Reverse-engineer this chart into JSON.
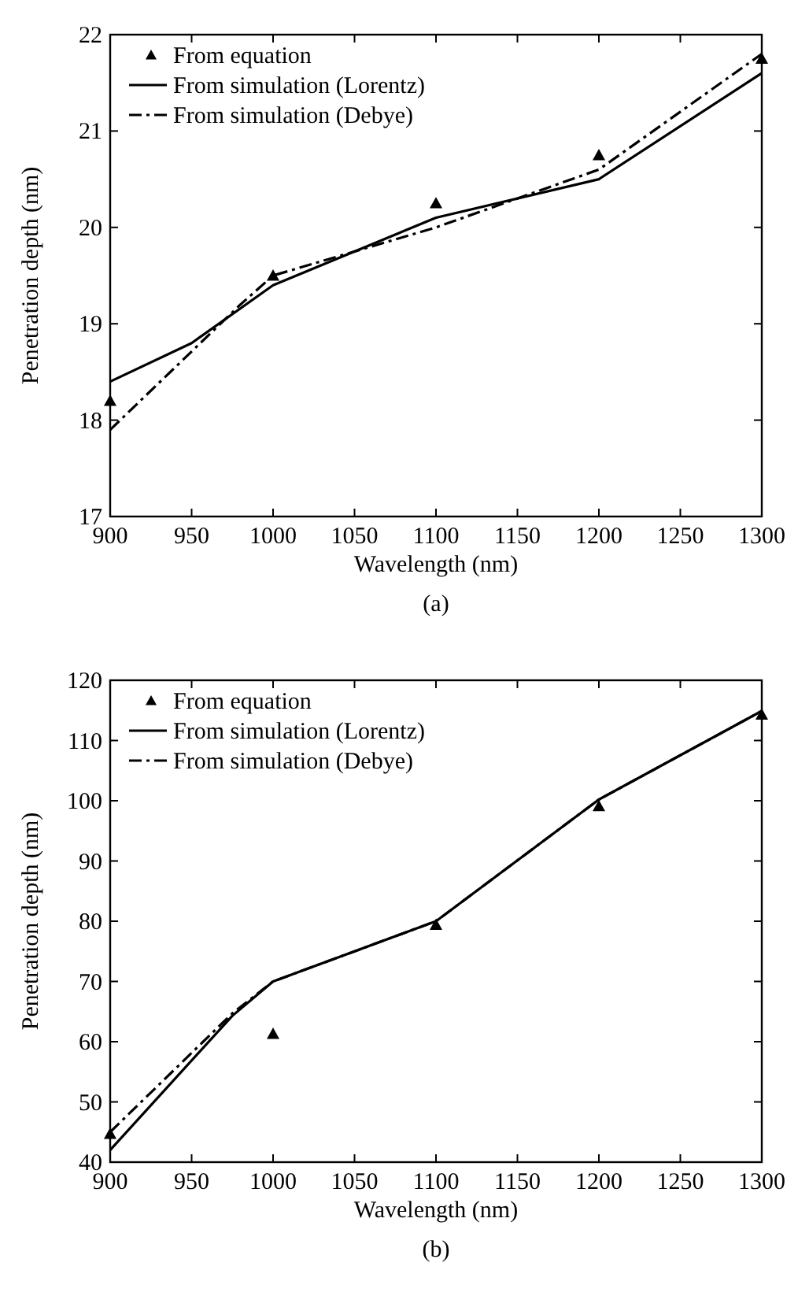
{
  "chart_data": [
    {
      "type": "line",
      "xlabel": "Wavelength (nm)",
      "ylabel": "Penetration depth (nm)",
      "annotations": [
        "(a)"
      ],
      "xlim": [
        900,
        1300
      ],
      "xticks": [
        900,
        950,
        1000,
        1050,
        1100,
        1150,
        1200,
        1250,
        1300
      ],
      "ylim": [
        17,
        22
      ],
      "yticks": [
        17,
        18,
        19,
        20,
        21,
        22
      ],
      "grid": false,
      "legend": "top left",
      "series": [
        {
          "name": "From equation",
          "type": "scatter",
          "marker": "triangle",
          "color": "#000000",
          "x": [
            900,
            1000,
            1100,
            1200,
            1300
          ],
          "values": [
            18.2,
            19.5,
            20.25,
            20.75,
            21.75
          ]
        },
        {
          "name": "From simulation (Lorentz)",
          "type": "line",
          "line_style": "solid",
          "color": "#000000",
          "x": [
            900,
            950,
            1000,
            1100,
            1200,
            1300
          ],
          "values": [
            18.4,
            18.8,
            19.4,
            20.1,
            20.5,
            21.6
          ]
        },
        {
          "name": "From simulation (Debye)",
          "type": "line",
          "line_style": "dashdot",
          "color": "#000000",
          "x": [
            900,
            980,
            1000,
            1100,
            1200,
            1300
          ],
          "values": [
            17.9,
            19.2,
            19.5,
            20.0,
            20.6,
            21.8
          ]
        }
      ]
    },
    {
      "type": "line",
      "xlabel": "Wavelength (nm)",
      "ylabel": "Penetration depth (nm)",
      "annotations": [
        "(b)"
      ],
      "xlim": [
        900,
        1300
      ],
      "xticks": [
        900,
        950,
        1000,
        1050,
        1100,
        1150,
        1200,
        1250,
        1300
      ],
      "ylim": [
        40,
        120
      ],
      "yticks": [
        40,
        50,
        60,
        70,
        80,
        90,
        100,
        110,
        120
      ],
      "grid": false,
      "legend": "top left",
      "series": [
        {
          "name": "From equation",
          "type": "scatter",
          "marker": "triangle",
          "color": "#000000",
          "x": [
            900,
            1000,
            1100,
            1200,
            1300
          ],
          "values": [
            44.7,
            61.3,
            79.4,
            99.1,
            114.3
          ]
        },
        {
          "name": "From simulation (Lorentz)",
          "type": "line",
          "line_style": "solid",
          "color": "#000000",
          "x": [
            900,
            975,
            1000,
            1100,
            1200,
            1300
          ],
          "values": [
            42,
            64.3,
            70,
            80,
            100.2,
            114.9
          ]
        },
        {
          "name": "From simulation (Debye)",
          "type": "line",
          "line_style": "dashdot",
          "color": "#000000",
          "x": [
            900,
            975,
            1000,
            1100,
            1200,
            1300
          ],
          "values": [
            45,
            64.7,
            70,
            80,
            100.2,
            114.9
          ]
        }
      ]
    }
  ]
}
